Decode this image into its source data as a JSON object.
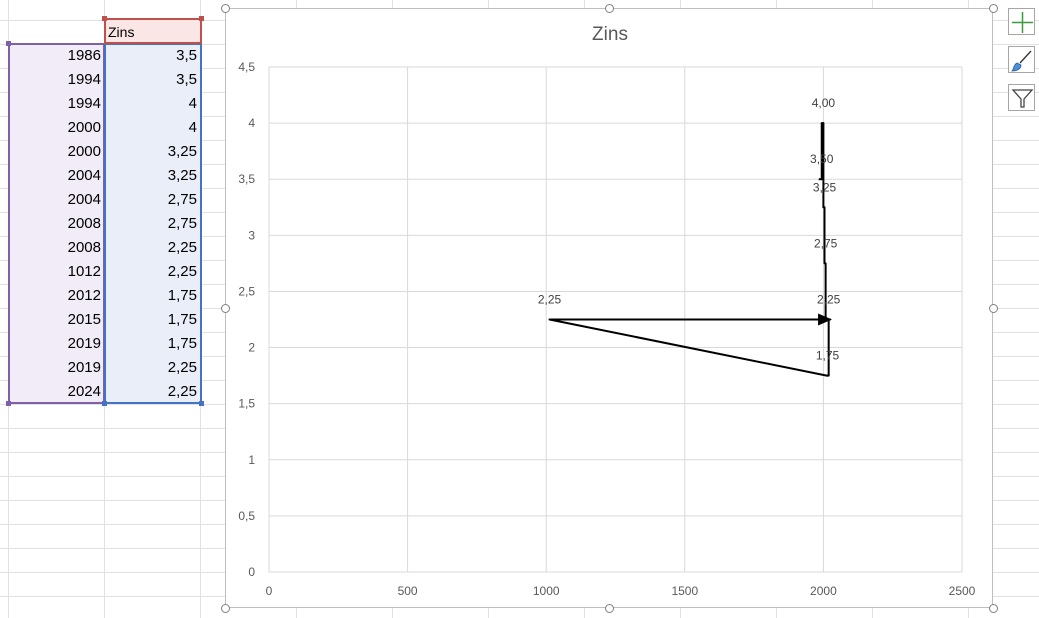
{
  "sheet": {
    "header": "Zins",
    "rows": [
      {
        "year": "1986",
        "value": "3,5"
      },
      {
        "year": "1994",
        "value": "3,5"
      },
      {
        "year": "1994",
        "value": "4"
      },
      {
        "year": "2000",
        "value": "4"
      },
      {
        "year": "2000",
        "value": "3,25"
      },
      {
        "year": "2004",
        "value": "3,25"
      },
      {
        "year": "2004",
        "value": "2,75"
      },
      {
        "year": "2008",
        "value": "2,75"
      },
      {
        "year": "2008",
        "value": "2,25"
      },
      {
        "year": "1012",
        "value": "2,25"
      },
      {
        "year": "2012",
        "value": "1,75"
      },
      {
        "year": "2015",
        "value": "1,75"
      },
      {
        "year": "2019",
        "value": "1,75"
      },
      {
        "year": "2019",
        "value": "2,25"
      },
      {
        "year": "2024",
        "value": "2,25"
      }
    ]
  },
  "chart_data": {
    "type": "scatter",
    "title": "Zins",
    "xlabel": "",
    "ylabel": "",
    "xlim": [
      0,
      2500
    ],
    "ylim": [
      0,
      4.5
    ],
    "x_ticks": [
      "0",
      "500",
      "1000",
      "1500",
      "2000",
      "2500"
    ],
    "y_ticks": [
      "0",
      "0,5",
      "1",
      "1,5",
      "2",
      "2,5",
      "3",
      "3,5",
      "4",
      "4,5"
    ],
    "grid": true,
    "legend": "none",
    "series": [
      {
        "x": [
          1986,
          1994,
          1994,
          2000,
          2000,
          2004,
          2004,
          2008,
          2008,
          1012,
          2012,
          2015,
          2019,
          2019,
          2024
        ],
        "y": [
          3.5,
          3.5,
          4,
          4,
          3.25,
          3.25,
          2.75,
          2.75,
          2.25,
          2.25,
          1.75,
          1.75,
          1.75,
          2.25,
          2.25
        ],
        "color": "#000000"
      }
    ],
    "data_labels": [
      {
        "x": 2000,
        "y": 4,
        "text": "4,00"
      },
      {
        "x": 1994,
        "y": 3.5,
        "text": "3,50"
      },
      {
        "x": 2004,
        "y": 3.25,
        "text": "3,25"
      },
      {
        "x": 2008,
        "y": 2.75,
        "text": "2,75"
      },
      {
        "x": 1012,
        "y": 2.25,
        "text": "2,25"
      },
      {
        "x": 2019,
        "y": 2.25,
        "text": "2,25"
      },
      {
        "x": 2015,
        "y": 1.75,
        "text": "1,75"
      }
    ]
  },
  "colors": {
    "gridline": "#d9d9d9",
    "axis_text": "#595959",
    "title_text": "#595959",
    "plus_icon": "#3c9a3c",
    "brush_icon": "#4a90d9"
  },
  "icons": [
    "chart-elements-icon",
    "chart-styles-icon",
    "chart-filter-icon"
  ]
}
